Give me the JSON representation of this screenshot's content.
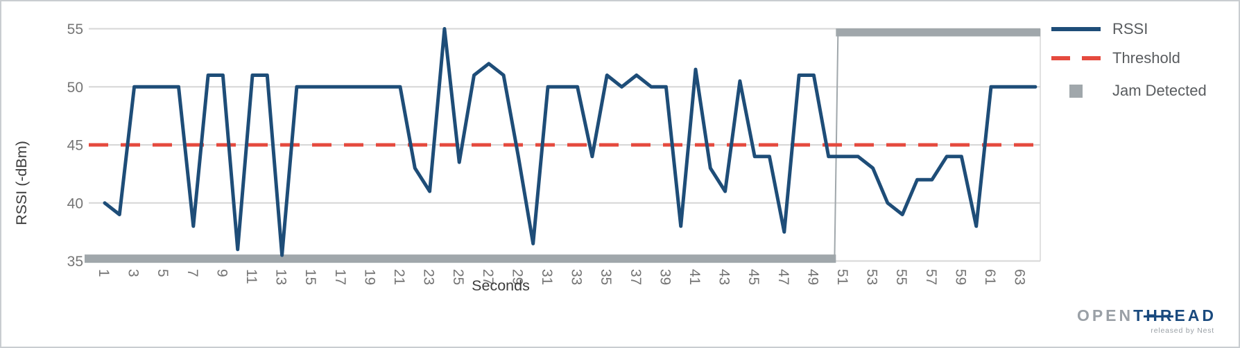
{
  "colors": {
    "rssi": "#1e4d78",
    "threshold": "#e54a3e",
    "jam": "#a0a7ab",
    "gridline": "#d6d6d6",
    "tick_text": "#757575",
    "axis_title_text": "#3d3d3d",
    "legend_text": "#595c5f",
    "logo_gray": "#9aa0a6",
    "logo_navy": "#1a4a7e"
  },
  "legend": {
    "items": [
      {
        "label": "RSSI",
        "swatch": "solid-line",
        "color": "#1e4d78"
      },
      {
        "label": "Threshold",
        "swatch": "dashed-line",
        "color": "#e54a3e"
      },
      {
        "label": "Jam Detected",
        "swatch": "square",
        "color": "#a0a7ab"
      }
    ]
  },
  "branding": {
    "logo_open": "OPEN",
    "logo_t": "T",
    "logo_hr": "HR",
    "logo_ead": "EAD",
    "tagline": "released by Nest"
  },
  "chart_data": {
    "type": "line",
    "title": "",
    "xlabel": "Seconds",
    "ylabel": "RSSI (-dBm)",
    "ylim": [
      35,
      55
    ],
    "xlim": [
      1,
      64
    ],
    "grid": true,
    "legend_position": "right",
    "y_ticks": [
      55,
      50,
      45,
      40,
      35
    ],
    "x_ticks": [
      1,
      3,
      5,
      7,
      9,
      11,
      13,
      15,
      17,
      19,
      21,
      23,
      25,
      27,
      29,
      31,
      33,
      35,
      37,
      39,
      41,
      43,
      45,
      47,
      49,
      51,
      53,
      55,
      57,
      59,
      61,
      63
    ],
    "x": [
      1,
      2,
      3,
      4,
      5,
      6,
      7,
      8,
      9,
      10,
      11,
      12,
      13,
      14,
      15,
      16,
      17,
      18,
      19,
      20,
      21,
      22,
      23,
      24,
      25,
      26,
      27,
      28,
      29,
      30,
      31,
      32,
      33,
      34,
      35,
      36,
      37,
      38,
      39,
      40,
      41,
      42,
      43,
      44,
      45,
      46,
      47,
      48,
      49,
      50,
      51,
      52,
      53,
      54,
      55,
      56,
      57,
      58,
      59,
      60,
      61,
      62,
      63,
      64
    ],
    "series": [
      {
        "name": "RSSI",
        "type": "line",
        "color": "#1e4d78",
        "values": [
          40,
          39,
          50,
          50,
          50,
          50,
          38,
          51,
          51,
          36,
          51,
          51,
          35.5,
          50,
          50,
          50,
          50,
          50,
          50,
          50,
          50,
          43,
          41,
          55,
          43.5,
          51,
          52,
          51,
          44,
          36.5,
          50,
          50,
          50,
          44,
          51,
          50,
          51,
          50,
          50,
          38,
          51.5,
          43,
          41,
          50.5,
          44,
          44,
          37.5,
          51,
          51,
          44,
          44,
          44,
          43,
          40,
          39,
          42,
          42,
          44,
          44,
          38,
          50,
          50,
          50,
          50
        ]
      },
      {
        "name": "Threshold",
        "type": "horizontal-dashed-line",
        "color": "#e54a3e",
        "value": 45
      },
      {
        "name": "Jam Detected",
        "type": "step-band",
        "color": "#a0a7ab",
        "off_level": 35.2,
        "on_level": 54.7,
        "off_range_seconds": [
          1,
          50
        ],
        "on_range_seconds": [
          51,
          64
        ],
        "transition_second": 50.5
      }
    ]
  }
}
